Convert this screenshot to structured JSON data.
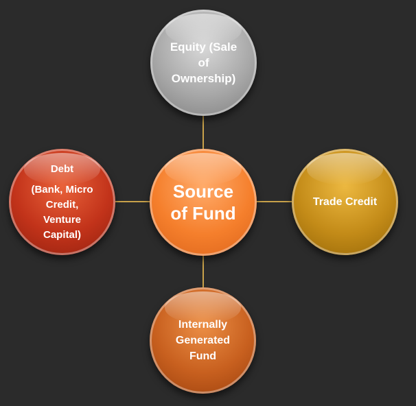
{
  "diagram": {
    "center": {
      "lines": [
        "Source",
        "of Fund"
      ]
    },
    "equity": {
      "lines": [
        "Equity (Sale",
        "of",
        "Ownership)"
      ]
    },
    "debt": {
      "title": "Debt",
      "detail_lines": [
        "(Bank, Micro",
        "Credit,",
        "Venture",
        "Capital)"
      ]
    },
    "trade_credit": {
      "label": "Trade Credit"
    },
    "internal": {
      "lines": [
        "Internally",
        "Generated",
        "Fund"
      ]
    }
  },
  "colors": {
    "background": "#2b2b2b",
    "connector": "#c9a24a",
    "equity": "#a8a8a8",
    "center": "#f57f2c",
    "debt": "#c2331a",
    "trade_credit": "#c38b18",
    "internal": "#c8601f",
    "text": "#ffffff"
  }
}
